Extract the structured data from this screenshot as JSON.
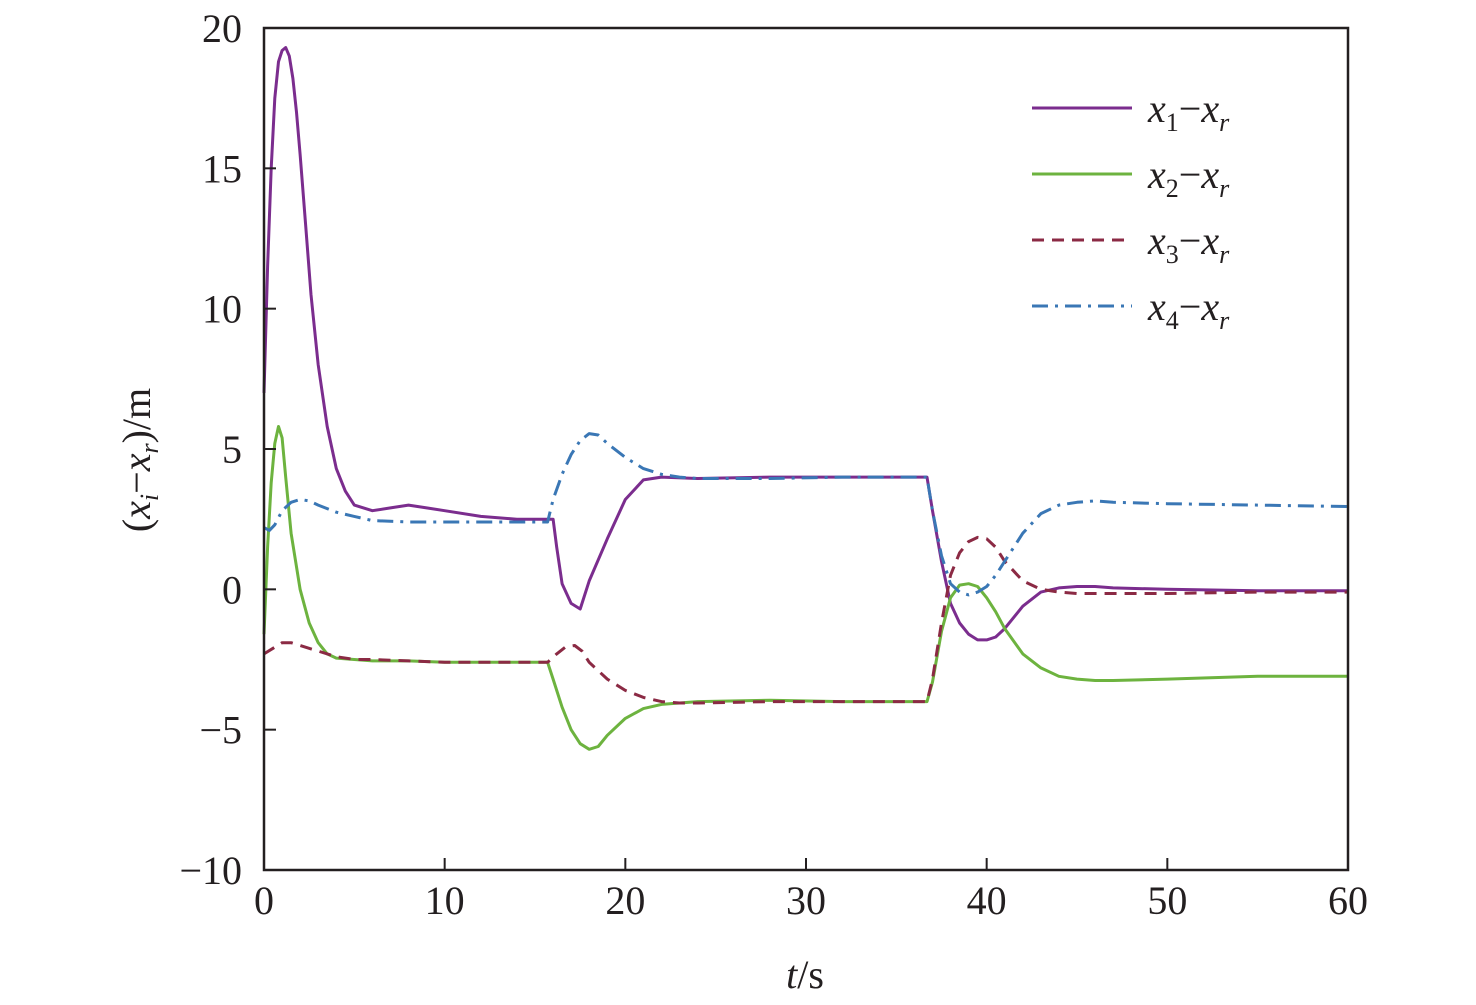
{
  "chart_data": {
    "type": "line",
    "xlabel": {
      "var": "t",
      "unit": "/s"
    },
    "ylabel": {
      "open": "(",
      "v1": "x",
      "s1": "i",
      "minus": "−",
      "v2": "x",
      "s2": "r",
      "close": ")/m"
    },
    "xlim": [
      0,
      60
    ],
    "ylim": [
      -10,
      20
    ],
    "xticks": [
      0,
      10,
      20,
      30,
      40,
      50,
      60
    ],
    "yticks": [
      -10,
      -5,
      0,
      5,
      10,
      15,
      20
    ],
    "xtick_labels": [
      "0",
      "10",
      "20",
      "30",
      "40",
      "50",
      "60"
    ],
    "ytick_labels": [
      "−10",
      "−5",
      "0",
      "5",
      "10",
      "15",
      "20"
    ],
    "grid": false,
    "legend_position": "top-right",
    "series": [
      {
        "name": {
          "v1": "x",
          "s1": "1",
          "minus": "−",
          "v2": "x",
          "s2": "r"
        },
        "color": "#7b2d8e",
        "dash": "solid",
        "x": [
          0,
          0.2,
          0.4,
          0.6,
          0.8,
          1.0,
          1.2,
          1.4,
          1.6,
          1.8,
          2.0,
          2.3,
          2.6,
          3.0,
          3.5,
          4.0,
          4.5,
          5.0,
          6.0,
          7.0,
          8.0,
          9.0,
          10.0,
          12.0,
          14.0,
          15.7,
          16.0,
          16.2,
          16.5,
          17.0,
          17.5,
          18.0,
          19.0,
          20.0,
          21.0,
          22.0,
          24.0,
          28.0,
          32.0,
          36.7,
          37.0,
          37.5,
          38.0,
          38.5,
          39.0,
          39.5,
          40.0,
          40.5,
          41.0,
          42.0,
          43.0,
          44.0,
          45.0,
          46.0,
          47.0,
          50.0,
          55.0,
          60.0
        ],
        "y": [
          7.0,
          11.5,
          15.0,
          17.5,
          18.8,
          19.2,
          19.3,
          19.0,
          18.2,
          17.0,
          15.5,
          13.0,
          10.5,
          8.0,
          5.8,
          4.3,
          3.5,
          3.0,
          2.8,
          2.9,
          3.0,
          2.9,
          2.8,
          2.6,
          2.5,
          2.5,
          2.5,
          1.5,
          0.2,
          -0.5,
          -0.7,
          0.3,
          1.8,
          3.2,
          3.9,
          4.0,
          3.95,
          4.0,
          4.0,
          4.0,
          2.8,
          1.0,
          -0.5,
          -1.2,
          -1.6,
          -1.8,
          -1.8,
          -1.7,
          -1.4,
          -0.6,
          -0.1,
          0.05,
          0.1,
          0.1,
          0.05,
          0.0,
          -0.05,
          -0.05
        ]
      },
      {
        "name": {
          "v1": "x",
          "s1": "2",
          "minus": "−",
          "v2": "x",
          "s2": "r"
        },
        "color": "#6db33f",
        "dash": "solid",
        "x": [
          0,
          0.2,
          0.4,
          0.6,
          0.8,
          1.0,
          1.2,
          1.5,
          2.0,
          2.5,
          3.0,
          3.5,
          4.0,
          5.0,
          6.0,
          8.0,
          10.0,
          12.0,
          14.0,
          15.7,
          16.0,
          16.5,
          17.0,
          17.5,
          18.0,
          18.5,
          19.0,
          20.0,
          21.0,
          22.0,
          24.0,
          28.0,
          32.0,
          36.7,
          37.0,
          37.5,
          38.0,
          38.5,
          39.0,
          39.5,
          40.0,
          40.5,
          41.0,
          42.0,
          43.0,
          44.0,
          45.0,
          46.0,
          47.0,
          50.0,
          55.0,
          60.0
        ],
        "y": [
          -1.6,
          1.5,
          3.8,
          5.2,
          5.8,
          5.4,
          4.0,
          2.0,
          0.0,
          -1.2,
          -1.9,
          -2.3,
          -2.45,
          -2.5,
          -2.55,
          -2.55,
          -2.6,
          -2.6,
          -2.6,
          -2.6,
          -3.2,
          -4.2,
          -5.0,
          -5.5,
          -5.7,
          -5.6,
          -5.2,
          -4.6,
          -4.25,
          -4.1,
          -4.0,
          -3.95,
          -4.0,
          -4.0,
          -3.3,
          -1.5,
          -0.3,
          0.15,
          0.2,
          0.1,
          -0.3,
          -0.8,
          -1.4,
          -2.3,
          -2.8,
          -3.1,
          -3.2,
          -3.25,
          -3.25,
          -3.2,
          -3.1,
          -3.1
        ]
      },
      {
        "name": {
          "v1": "x",
          "s1": "3",
          "minus": "−",
          "v2": "x",
          "s2": "r"
        },
        "color": "#8b2a44",
        "dash": "dashed",
        "x": [
          0,
          0.5,
          1.0,
          1.5,
          2.0,
          3.0,
          4.0,
          5.0,
          6.0,
          8.0,
          10.0,
          12.0,
          14.0,
          15.7,
          16.2,
          16.7,
          17.2,
          17.6,
          18.0,
          19.0,
          20.0,
          21.0,
          22.0,
          23.0,
          24.0,
          28.0,
          32.0,
          36.7,
          37.0,
          37.5,
          38.0,
          38.5,
          39.0,
          39.5,
          40.0,
          40.5,
          41.0,
          42.0,
          43.0,
          44.0,
          45.0,
          46.0,
          50.0,
          55.0,
          60.0
        ],
        "y": [
          -2.3,
          -2.1,
          -1.9,
          -1.9,
          -2.0,
          -2.2,
          -2.4,
          -2.5,
          -2.5,
          -2.55,
          -2.6,
          -2.6,
          -2.6,
          -2.6,
          -2.3,
          -2.05,
          -2.0,
          -2.2,
          -2.6,
          -3.2,
          -3.6,
          -3.85,
          -4.0,
          -4.05,
          -4.05,
          -4.0,
          -4.0,
          -4.0,
          -3.2,
          -1.2,
          0.5,
          1.3,
          1.7,
          1.85,
          1.8,
          1.5,
          1.0,
          0.3,
          0.0,
          -0.1,
          -0.15,
          -0.15,
          -0.15,
          -0.1,
          -0.1
        ]
      },
      {
        "name": {
          "v1": "x",
          "s1": "4",
          "minus": "−",
          "v2": "x",
          "s2": "r"
        },
        "color": "#3a77b5",
        "dash": "dashdot",
        "x": [
          0,
          0.3,
          0.6,
          1.0,
          1.5,
          2.0,
          2.5,
          3.0,
          4.0,
          5.0,
          6.0,
          8.0,
          10.0,
          12.0,
          14.0,
          15.7,
          16.0,
          16.5,
          17.0,
          17.5,
          18.0,
          18.5,
          19.0,
          20.0,
          21.0,
          22.0,
          23.0,
          24.0,
          28.0,
          32.0,
          36.7,
          37.0,
          37.5,
          38.0,
          38.5,
          39.0,
          39.5,
          40.0,
          40.5,
          41.0,
          42.0,
          43.0,
          44.0,
          45.0,
          46.0,
          47.0,
          50.0,
          55.0,
          60.0
        ],
        "y": [
          2.2,
          2.1,
          2.3,
          2.8,
          3.1,
          3.2,
          3.15,
          3.0,
          2.75,
          2.6,
          2.45,
          2.4,
          2.4,
          2.4,
          2.4,
          2.4,
          3.2,
          4.1,
          4.8,
          5.3,
          5.55,
          5.5,
          5.2,
          4.7,
          4.3,
          4.1,
          4.0,
          3.95,
          3.95,
          4.0,
          4.0,
          2.8,
          1.2,
          0.2,
          -0.1,
          -0.2,
          -0.1,
          0.1,
          0.5,
          1.0,
          2.0,
          2.7,
          3.0,
          3.1,
          3.15,
          3.1,
          3.05,
          3.0,
          2.95
        ]
      }
    ]
  }
}
